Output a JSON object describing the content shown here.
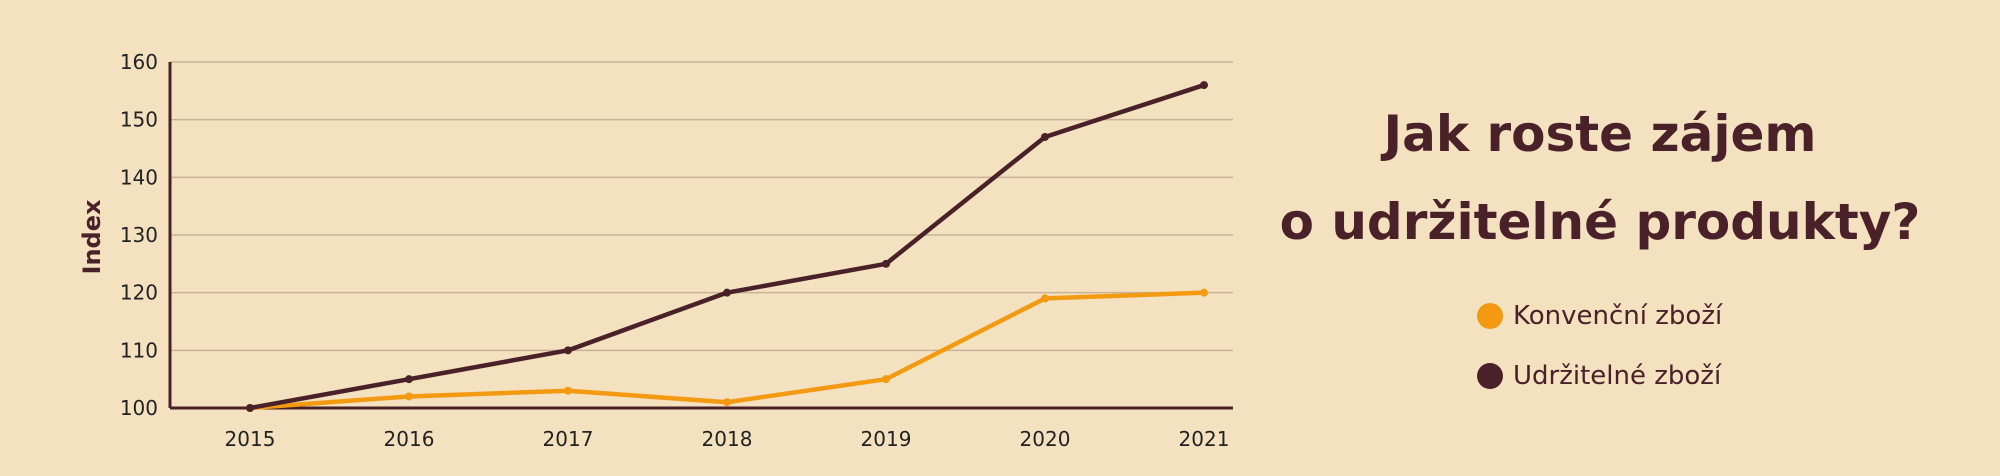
{
  "chart_data": {
    "type": "line",
    "title_lines": [
      "Jak roste zájem",
      "o udržitelné produkty?"
    ],
    "xlabel": "",
    "ylabel": "Index",
    "x": [
      "2015",
      "2016",
      "2017",
      "2018",
      "2019",
      "2020",
      "2021"
    ],
    "ylim": [
      100,
      160
    ],
    "yticks": [
      100,
      110,
      120,
      130,
      140,
      150,
      160
    ],
    "grid": true,
    "legend_position": "right",
    "series": [
      {
        "name": "Konvenční zboží",
        "color": "#f39a12",
        "values": [
          100,
          102,
          103,
          101,
          105,
          119,
          120
        ]
      },
      {
        "name": "Udržitelné zboží",
        "color": "#4a2128",
        "values": [
          100,
          105,
          110,
          120,
          125,
          147,
          156
        ]
      }
    ]
  },
  "colors": {
    "background": "#f4e1c0",
    "axis": "#4a2128",
    "grid": "#c9b396"
  }
}
